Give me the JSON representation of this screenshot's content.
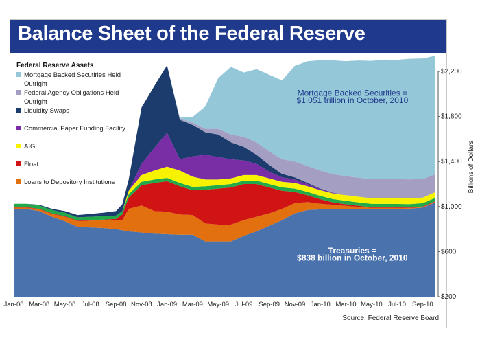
{
  "colors": {
    "title_band": "#1f3a8c",
    "treasuries": "#4a72ad",
    "loans_to_depository_institutions": "#e3700f",
    "float": "#d01414",
    "aig": "#f6f200",
    "commercial_paper_funding_facility": "#7a2ea6",
    "liquidity_swaps": "#1b3c6d",
    "federal_agency_obligations": "#a49fc2",
    "mortgage_backed_securities": "#94c7d8",
    "green_band": "#22a94a"
  },
  "chart_data": {
    "type": "area",
    "stacked": true,
    "title": "Balance Sheet of the Federal Reserve",
    "legend_title": "Federal Reserve Assets",
    "ylabel": "Billions of Dollars",
    "ylim": [
      200,
      2200
    ],
    "y_ticks": [
      200,
      600,
      1000,
      1400,
      1800,
      2200
    ],
    "y_tick_labels": [
      "$200",
      "$600",
      "$1,000",
      "$1,400",
      "$1,800",
      "$2,200"
    ],
    "x_tick_labels": [
      "Jan-08",
      "Mar-08",
      "May-08",
      "Jul-08",
      "Sep-08",
      "Nov-08",
      "Jan-09",
      "Mar-09",
      "May-09",
      "Jul-09",
      "Sep-09",
      "Nov-09",
      "Jan-10",
      "Mar-10",
      "May-10",
      "Jul-10",
      "Sep-10"
    ],
    "x": [
      0,
      1,
      2,
      3,
      4,
      5,
      6,
      7,
      8,
      8.5,
      9,
      10,
      11,
      12,
      13,
      14,
      15,
      16,
      17,
      18,
      19,
      20,
      21,
      22,
      23,
      24,
      25,
      26,
      27,
      28,
      29,
      30,
      31,
      32,
      33
    ],
    "series": [
      {
        "name": "Treasuries",
        "color_key": "treasuries",
        "values": [
          780,
          780,
          760,
          710,
          670,
          620,
          615,
          610,
          600,
          590,
          580,
          570,
          560,
          555,
          550,
          550,
          490,
          490,
          490,
          540,
          580,
          630,
          680,
          740,
          770,
          775,
          776,
          776,
          777,
          778,
          779,
          780,
          781,
          790,
          838
        ]
      },
      {
        "name": "Loans to Depository Institutions",
        "color_key": "loans_to_depository_institutions",
        "values": [
          10,
          10,
          15,
          25,
          40,
          50,
          60,
          70,
          80,
          90,
          200,
          240,
          200,
          200,
          180,
          175,
          160,
          150,
          150,
          140,
          130,
          110,
          100,
          90,
          70,
          50,
          40,
          30,
          20,
          10,
          10,
          8,
          6,
          5,
          5
        ]
      },
      {
        "name": "Float",
        "color_key": "float",
        "values": [
          5,
          5,
          5,
          5,
          5,
          5,
          5,
          5,
          10,
          50,
          100,
          180,
          250,
          270,
          250,
          220,
          300,
          320,
          330,
          320,
          290,
          230,
          160,
          100,
          60,
          40,
          20,
          15,
          10,
          6,
          5,
          5,
          5,
          5,
          5
        ]
      },
      {
        "name": "Green Band",
        "color_key": "green_band",
        "values": [
          30,
          30,
          30,
          30,
          30,
          30,
          30,
          30,
          30,
          30,
          30,
          30,
          30,
          30,
          30,
          30,
          30,
          30,
          30,
          30,
          30,
          30,
          30,
          30,
          30,
          30,
          30,
          30,
          30,
          30,
          30,
          30,
          30,
          30,
          30
        ]
      },
      {
        "name": "AIG",
        "color_key": "aig",
        "values": [
          0,
          0,
          0,
          0,
          0,
          0,
          0,
          0,
          0,
          0,
          30,
          60,
          80,
          100,
          110,
          90,
          60,
          50,
          50,
          50,
          50,
          50,
          50,
          50,
          50,
          50,
          50,
          50,
          50,
          50,
          50,
          50,
          50,
          50,
          50
        ]
      },
      {
        "name": "Commercial Paper Funding Facility",
        "color_key": "commercial_paper_funding_facility",
        "values": [
          0,
          0,
          0,
          0,
          0,
          0,
          0,
          0,
          0,
          0,
          0,
          100,
          200,
          300,
          100,
          180,
          220,
          200,
          170,
          130,
          100,
          60,
          40,
          30,
          20,
          10,
          5,
          0,
          0,
          0,
          0,
          0,
          0,
          0,
          0
        ]
      },
      {
        "name": "Liquidity Swaps",
        "color_key": "liquidity_swaps",
        "values": [
          0,
          0,
          5,
          10,
          15,
          20,
          25,
          30,
          40,
          60,
          100,
          500,
          550,
          600,
          350,
          280,
          200,
          200,
          150,
          120,
          80,
          60,
          30,
          20,
          10,
          5,
          2,
          0,
          0,
          0,
          0,
          0,
          0,
          0,
          0
        ]
      },
      {
        "name": "Federal Agency Obligations Held Outright",
        "color_key": "federal_agency_obligations",
        "values": [
          0,
          0,
          0,
          0,
          0,
          0,
          0,
          0,
          0,
          0,
          0,
          0,
          0,
          0,
          10,
          20,
          30,
          50,
          70,
          90,
          110,
          120,
          130,
          140,
          150,
          160,
          165,
          170,
          170,
          170,
          170,
          170,
          170,
          165,
          160
        ]
      },
      {
        "name": "Mortgage Backed Securities Held Outright",
        "color_key": "mortgage_backed_securities",
        "values": [
          0,
          0,
          0,
          0,
          0,
          0,
          0,
          0,
          0,
          0,
          0,
          0,
          0,
          0,
          10,
          50,
          200,
          450,
          600,
          570,
          650,
          680,
          700,
          850,
          930,
          980,
          1010,
          1020,
          1040,
          1050,
          1060,
          1060,
          1070,
          1070,
          1051
        ]
      }
    ],
    "annotations": [
      {
        "text": "Mortgage Backed Securities  =",
        "x": 26.5,
        "y": 1985,
        "color": "#1f3a8c",
        "anchor": "middle"
      },
      {
        "text": "$1.051 trillion in October, 2010",
        "x": 26.5,
        "y": 1918,
        "color": "#1f3a8c",
        "anchor": "middle"
      },
      {
        "text": "Treasuries =",
        "x": 26.5,
        "y": 585,
        "color": "#ffffff",
        "anchor": "middle"
      },
      {
        "text": "$838 billion in October, 2010",
        "x": 26.5,
        "y": 520,
        "color": "#ffffff",
        "anchor": "middle"
      }
    ],
    "legend": [
      {
        "label": [
          "Mortgage Backed Secutiries Held",
          "Outright"
        ],
        "color_key": "mortgage_backed_securities"
      },
      {
        "label": [
          "Federal Agency Obligations Held",
          "Outright"
        ],
        "color_key": "federal_agency_obligations"
      },
      {
        "label": [
          "Liquidity Swaps"
        ],
        "color_key": "liquidity_swaps"
      },
      {
        "label": [
          "Commercial Paper Funding Facility"
        ],
        "color_key": "commercial_paper_funding_facility"
      },
      {
        "label": [
          "AIG"
        ],
        "color_key": "aig"
      },
      {
        "label": [
          "Float"
        ],
        "color_key": "float"
      },
      {
        "label": [
          "Loans to Depository Institutions"
        ],
        "color_key": "loans_to_depository_institutions"
      }
    ],
    "source": "Source: Federal Reserve Board"
  }
}
